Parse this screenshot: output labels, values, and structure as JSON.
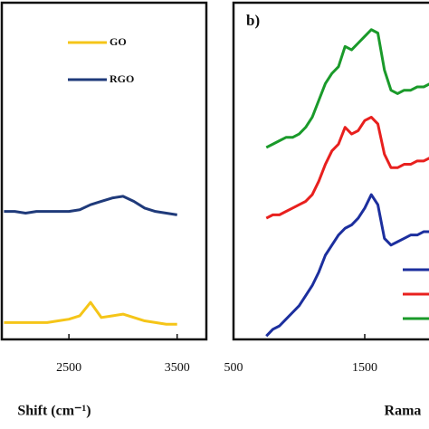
{
  "chart_data": [
    {
      "type": "line",
      "x_label": "Shift (cm⁻¹)",
      "x": [
        1900,
        2000,
        2100,
        2200,
        2300,
        2400,
        2500,
        2600,
        2700,
        2800,
        2900,
        3000,
        3100,
        3200,
        3300,
        3400,
        3500
      ],
      "xlim": [
        1880,
        3770
      ],
      "xticks": [
        2500,
        3500
      ],
      "ylim": [
        0,
        100
      ],
      "series": [
        {
          "name": "GO",
          "color": "#f5c518",
          "values": [
            5,
            5,
            5,
            5,
            5,
            5.5,
            6,
            7,
            11,
            6.5,
            7,
            7.5,
            6.5,
            5.5,
            5,
            4.5,
            4.5
          ]
        },
        {
          "name": "RGO",
          "color": "#1f3a7a",
          "values": [
            38,
            38,
            37.5,
            38,
            38,
            38,
            38,
            38.5,
            40,
            41,
            42,
            42.5,
            41,
            39,
            38,
            37.5,
            37
          ]
        }
      ]
    },
    {
      "type": "line",
      "panel_label": "b)",
      "x_label": "Rama",
      "x": [
        750,
        800,
        850,
        900,
        950,
        1000,
        1050,
        1100,
        1150,
        1200,
        1250,
        1300,
        1350,
        1400,
        1450,
        1500,
        1550,
        1600,
        1650,
        1700,
        1750,
        1800,
        1850,
        1900,
        1950,
        2000
      ],
      "xlim": [
        500,
        2100
      ],
      "xticks": [
        500,
        1500
      ],
      "ylim": [
        0,
        100
      ],
      "series": [
        {
          "color": "#1a9a2a",
          "values": [
            57,
            58,
            59,
            60,
            60,
            61,
            63,
            66,
            71,
            76,
            79,
            81,
            87,
            86,
            88,
            90,
            92,
            91,
            80,
            74,
            73,
            74,
            74,
            75,
            75,
            76
          ]
        },
        {
          "color": "#e8201e",
          "values": [
            36,
            37,
            37,
            38,
            39,
            40,
            41,
            43,
            47,
            52,
            56,
            58,
            63,
            61,
            62,
            65,
            66,
            64,
            55,
            51,
            51,
            52,
            52,
            53,
            53,
            54
          ]
        },
        {
          "color": "#1c2f9e",
          "values": [
            1,
            3,
            4,
            6,
            8,
            10,
            13,
            16,
            20,
            25,
            28,
            31,
            33,
            34,
            36,
            39,
            43,
            40,
            30,
            28,
            29,
            30,
            31,
            31,
            32,
            32
          ]
        }
      ]
    }
  ]
}
